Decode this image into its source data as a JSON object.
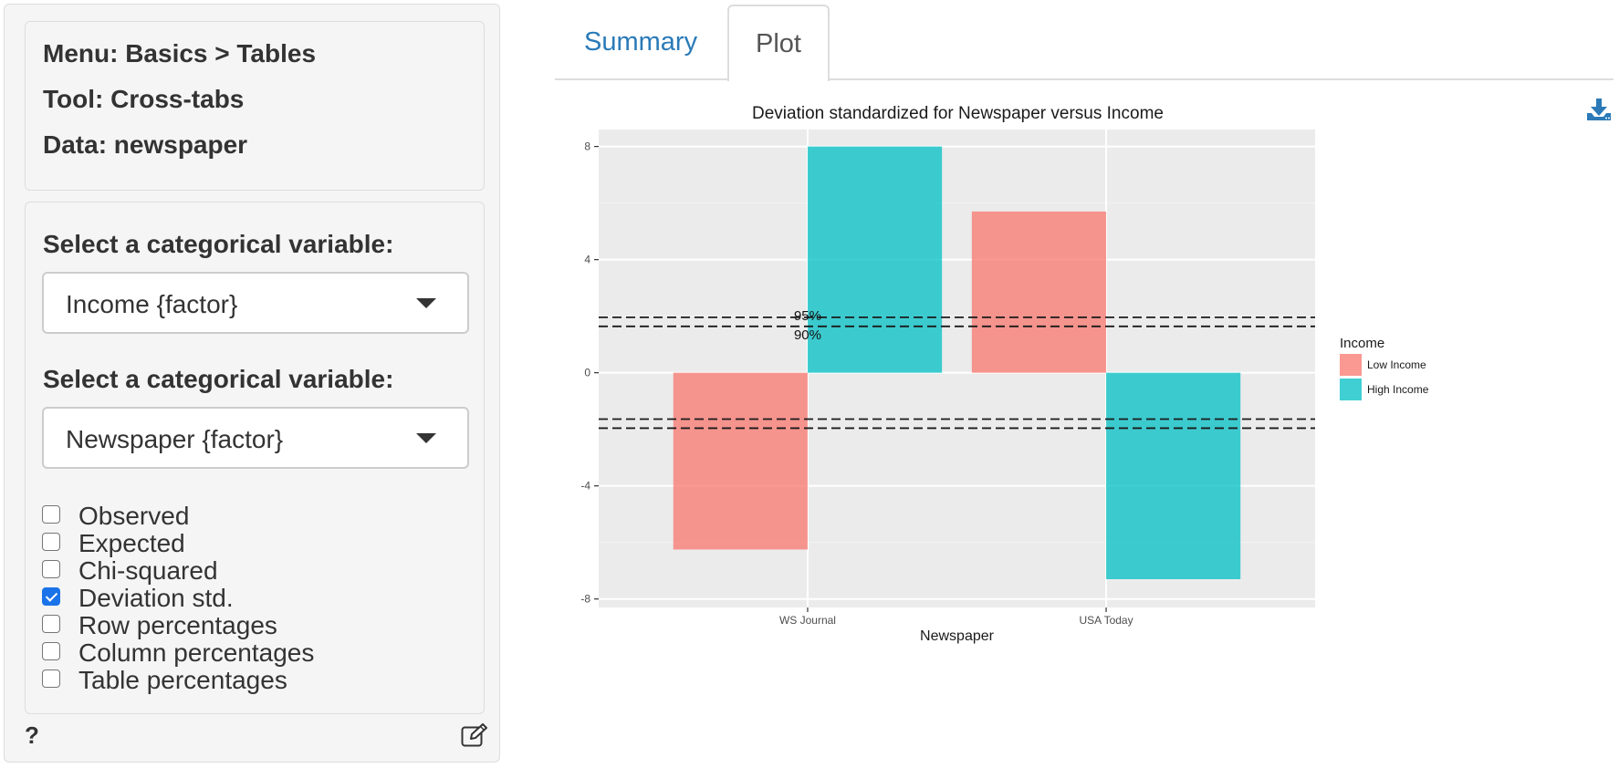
{
  "sidebar": {
    "info": {
      "menu": "Menu: Basics > Tables",
      "tool": "Tool: Cross-tabs",
      "data": "Data: newspaper"
    },
    "var1": {
      "label": "Select a categorical variable:",
      "value": "Income {factor}"
    },
    "var2": {
      "label": "Select a categorical variable:",
      "value": "Newspaper {factor}"
    },
    "checkboxes": [
      {
        "label": "Observed",
        "checked": false
      },
      {
        "label": "Expected",
        "checked": false
      },
      {
        "label": "Chi-squared",
        "checked": false
      },
      {
        "label": "Deviation std.",
        "checked": true
      },
      {
        "label": "Row percentages",
        "checked": false
      },
      {
        "label": "Column percentages",
        "checked": false
      },
      {
        "label": "Table percentages",
        "checked": false
      }
    ],
    "help_label": "?"
  },
  "tabs": [
    {
      "label": "Summary",
      "active": false
    },
    {
      "label": "Plot",
      "active": true
    }
  ],
  "icons": {
    "download": "download-icon",
    "edit": "edit-icon"
  },
  "colors": {
    "low_income": "#f8766d",
    "high_income": "#00bfc4",
    "panel": "#ebebeb",
    "tab_link": "#2a7ab8"
  },
  "chart_data": {
    "type": "bar",
    "title": "Deviation standardized for Newspaper versus Income",
    "xlabel": "Newspaper",
    "ylabel": "",
    "categories": [
      "WS Journal",
      "USA Today"
    ],
    "series": [
      {
        "name": "Low Income",
        "values": [
          -6.25,
          5.7
        ]
      },
      {
        "name": "High Income",
        "values": [
          8.0,
          -7.3
        ]
      }
    ],
    "ylim": [
      -8.3,
      8.6
    ],
    "yticks": [
      -8,
      -4,
      0,
      4,
      8
    ],
    "reference_lines": [
      {
        "label": "95%",
        "values": [
          1.96,
          -1.96
        ]
      },
      {
        "label": "90%",
        "values": [
          1.64,
          -1.64
        ]
      }
    ],
    "legend_title": "Income",
    "legend_position": "right",
    "grid": true
  }
}
